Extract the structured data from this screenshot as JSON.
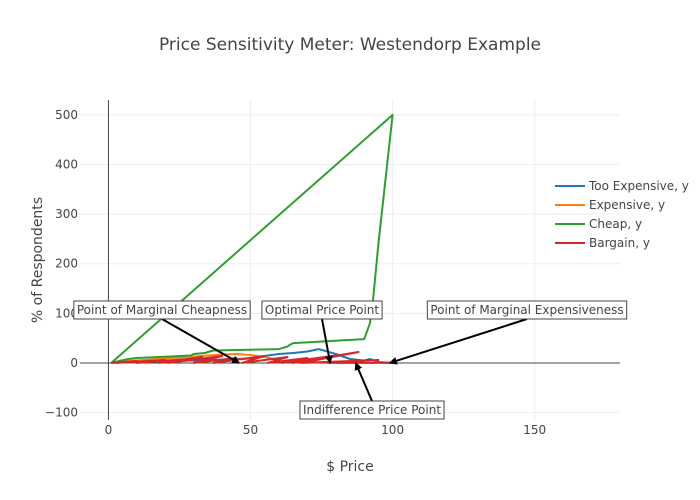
{
  "chart_data": {
    "type": "line",
    "title": "Price Sensitivity Meter: Westendorp Example",
    "xlabel": "$ Price",
    "ylabel": "% of Respondents",
    "xlim": [
      -10,
      180
    ],
    "ylim": [
      -115,
      530
    ],
    "x_ticks": [
      0,
      50,
      100,
      150
    ],
    "y_ticks": [
      -100,
      0,
      100,
      200,
      300,
      400,
      500
    ],
    "grid": true,
    "legend_position": "right",
    "series": [
      {
        "name": "Too Expensive, y",
        "color": "#1f77b4",
        "x": [
          1,
          10,
          20,
          30,
          40,
          50,
          56,
          60,
          65,
          70,
          74,
          80,
          85,
          90,
          92,
          95,
          100
        ],
        "y": [
          0,
          2,
          4,
          5,
          7,
          9,
          15,
          18,
          20,
          23,
          28,
          18,
          8,
          5,
          8,
          2,
          0
        ]
      },
      {
        "name": "Expensive, y",
        "color": "#ff7f0e",
        "x": [
          1,
          5,
          10,
          15,
          20,
          25,
          30,
          35,
          40,
          45,
          50,
          55,
          60
        ],
        "y": [
          0,
          3,
          5,
          7,
          9,
          11,
          13,
          15,
          17,
          18,
          16,
          12,
          6
        ]
      },
      {
        "name": "Cheap, y",
        "color": "#2ca02c",
        "x": [
          1,
          7,
          10,
          18,
          29,
          30,
          34,
          35,
          37,
          60,
          63,
          64,
          65,
          90,
          92,
          93,
          95,
          100,
          1
        ],
        "y": [
          0,
          8,
          10,
          12,
          15,
          18,
          20,
          22,
          25,
          28,
          33,
          37,
          40,
          48,
          80,
          120,
          240,
          500,
          0
        ]
      },
      {
        "name": "Bargain, y",
        "color": "#d62728",
        "x": [
          1,
          10,
          3,
          20,
          10,
          28,
          18,
          33,
          21,
          40,
          30,
          45,
          37,
          55,
          47,
          63,
          56,
          70,
          61,
          80,
          65,
          88,
          68,
          95,
          77,
          100
        ],
        "y": [
          0,
          4,
          0,
          6,
          0,
          8,
          0,
          12,
          0,
          14,
          0,
          10,
          0,
          14,
          0,
          12,
          0,
          10,
          0,
          15,
          0,
          22,
          0,
          6,
          0,
          0
        ]
      }
    ],
    "annotations": [
      {
        "text": "Point of Marginal Cheapness",
        "point": [
          46,
          0
        ]
      },
      {
        "text": "Optimal Price Point",
        "point": [
          78,
          0
        ]
      },
      {
        "text": "Point of Marginal Expensiveness",
        "point": [
          99,
          0
        ]
      },
      {
        "text": "Indifference Price Point",
        "point": [
          87,
          0
        ]
      }
    ]
  }
}
